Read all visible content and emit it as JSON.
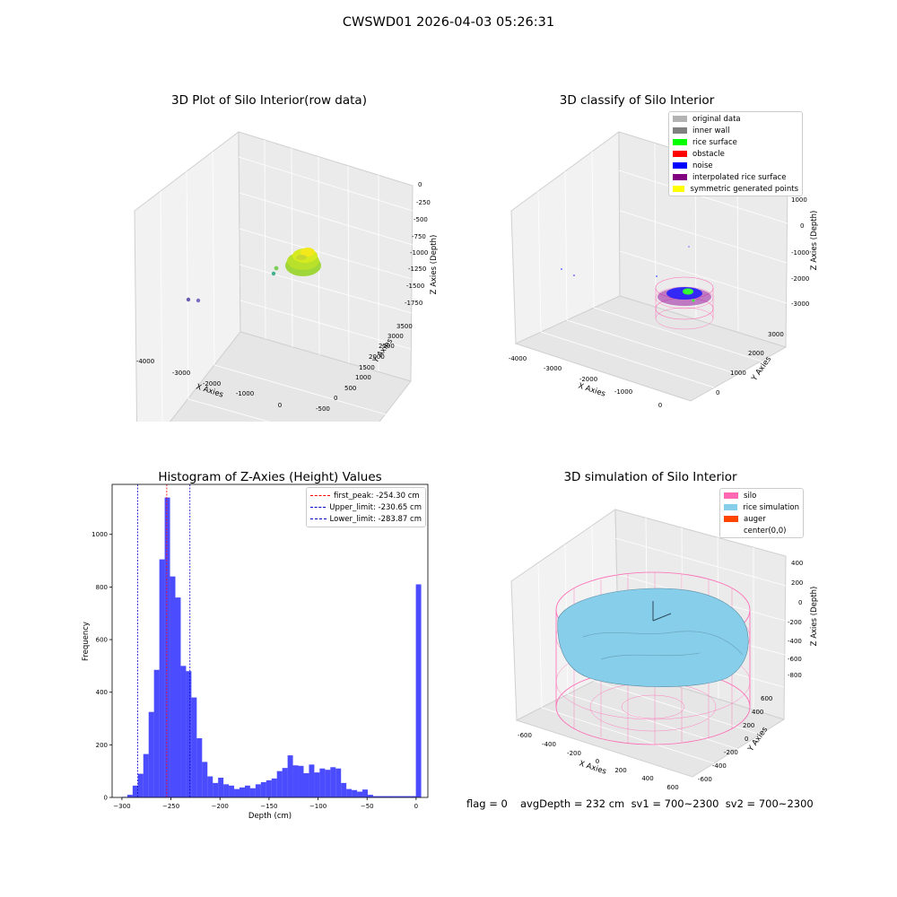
{
  "suptitle": "CWSWD01 2026-04-03 05:26:31",
  "panels": {
    "raw": {
      "title": "3D Plot of Silo Interior(row data)",
      "xlabel": "X Axies",
      "ylabel": "Y Axies",
      "zlabel": "Z Axies (Depth)",
      "xticks": [
        "-4000",
        "-3000",
        "-2000",
        "-1000",
        "0"
      ],
      "yticks": [
        "-500",
        "0",
        "500",
        "1000",
        "1500",
        "2000",
        "2500",
        "3000",
        "3500"
      ],
      "zticks": [
        "0",
        "-250",
        "-500",
        "-750",
        "-1000",
        "-1250",
        "-1500",
        "-1750"
      ]
    },
    "classify": {
      "title": "3D classify of Silo Interior",
      "xlabel": "X Axies",
      "ylabel": "Y Axies",
      "zlabel": "Z Axies (Depth)",
      "xticks": [
        "-4000",
        "-3000",
        "-2000",
        "-1000",
        "0"
      ],
      "yticks": [
        "0",
        "1000",
        "2000",
        "3000"
      ],
      "zticks": [
        "1000",
        "0",
        "-1000",
        "-2000",
        "-3000"
      ],
      "legend": [
        {
          "label": "original data",
          "color": "#b3b3b3"
        },
        {
          "label": "inner wall",
          "color": "#808080"
        },
        {
          "label": "rice surface",
          "color": "#00ff00"
        },
        {
          "label": "obstacle",
          "color": "#ff0000"
        },
        {
          "label": "noise",
          "color": "#0000ff"
        },
        {
          "label": "interpolated rice surface",
          "color": "#800080"
        },
        {
          "label": "symmetric generated points",
          "color": "#ffff00"
        }
      ]
    },
    "histogram": {
      "title": "Histogram of Z-Axies (Height) Values",
      "legend": [
        {
          "label": "first_peak: -254.30 cm",
          "color": "#ff0000"
        },
        {
          "label": "Upper_limit: -230.65 cm",
          "color": "#0000cc"
        },
        {
          "label": "Lower_limit: -283.87 cm",
          "color": "#0000cc"
        }
      ]
    },
    "simulation": {
      "title": "3D simulation of Silo Interior",
      "xlabel": "X Axies",
      "ylabel": "Y Axies",
      "zlabel": "Z Axies (Depth)",
      "xticks": [
        "-600",
        "-400",
        "-200",
        "0",
        "200",
        "400",
        "600"
      ],
      "yticks": [
        "-600",
        "-400",
        "-200",
        "0",
        "200",
        "400",
        "600"
      ],
      "zticks": [
        "400",
        "200",
        "0",
        "-200",
        "-400",
        "-600",
        "-800"
      ],
      "legend": [
        {
          "label": "silo",
          "color": "#ff69b4"
        },
        {
          "label": "rice simulation",
          "color": "#87ceeb"
        },
        {
          "label": "auger",
          "color": "#ff4500"
        },
        {
          "label": "center(0,0)",
          "color": "#ffffff"
        }
      ]
    }
  },
  "footer": {
    "flag": "flag = 0",
    "stats": "avgDepth = 232 cm  sv1 = 700~2300  sv2 = 700~2300"
  },
  "chart_data": [
    {
      "type": "bar",
      "title": "Histogram of Z-Axies (Height) Values",
      "xlabel": "Depth (cm)",
      "ylabel": "Frequency",
      "xlim": [
        -310,
        12
      ],
      "ylim": [
        0,
        1190
      ],
      "xticks": [
        -300,
        -250,
        -200,
        -150,
        -100,
        -50,
        0
      ],
      "yticks": [
        0,
        200,
        400,
        600,
        800,
        1000
      ],
      "bin_width": 5.45,
      "bin_starts": [
        -300.0,
        -294.55,
        -289.1,
        -283.65,
        -278.2,
        -272.75,
        -267.3,
        -261.85,
        -256.4,
        -250.95,
        -245.5,
        -240.05,
        -234.6,
        -229.15,
        -223.7,
        -218.25,
        -212.8,
        -207.35,
        -201.9,
        -196.45,
        -191.0,
        -185.55,
        -180.1,
        -174.65,
        -169.2,
        -163.75,
        -158.3,
        -152.85,
        -147.4,
        -141.95,
        -136.5,
        -131.05,
        -125.6,
        -120.15,
        -114.7,
        -109.25,
        -103.8,
        -98.35,
        -92.9,
        -87.45,
        -82.0,
        -76.55,
        -71.1,
        -65.65,
        -60.2,
        -54.75,
        -49.3,
        -43.85,
        -38.4,
        -32.95,
        -27.5,
        -22.05,
        -16.6,
        -11.15,
        -5.7,
        -0.25
      ],
      "values": [
        2,
        10,
        45,
        90,
        165,
        325,
        485,
        905,
        1140,
        840,
        760,
        500,
        480,
        380,
        225,
        135,
        80,
        55,
        75,
        50,
        45,
        32,
        38,
        45,
        35,
        50,
        58,
        65,
        72,
        100,
        112,
        160,
        122,
        120,
        92,
        125,
        95,
        110,
        105,
        115,
        110,
        55,
        32,
        28,
        22,
        30,
        10,
        5,
        5,
        5,
        5,
        5,
        5,
        5,
        5,
        810
      ],
      "vlines": [
        {
          "x": -254.3,
          "color": "#ff0000"
        },
        {
          "x": -230.65,
          "color": "#0000cc"
        },
        {
          "x": -283.87,
          "color": "#0000cc"
        }
      ]
    }
  ]
}
